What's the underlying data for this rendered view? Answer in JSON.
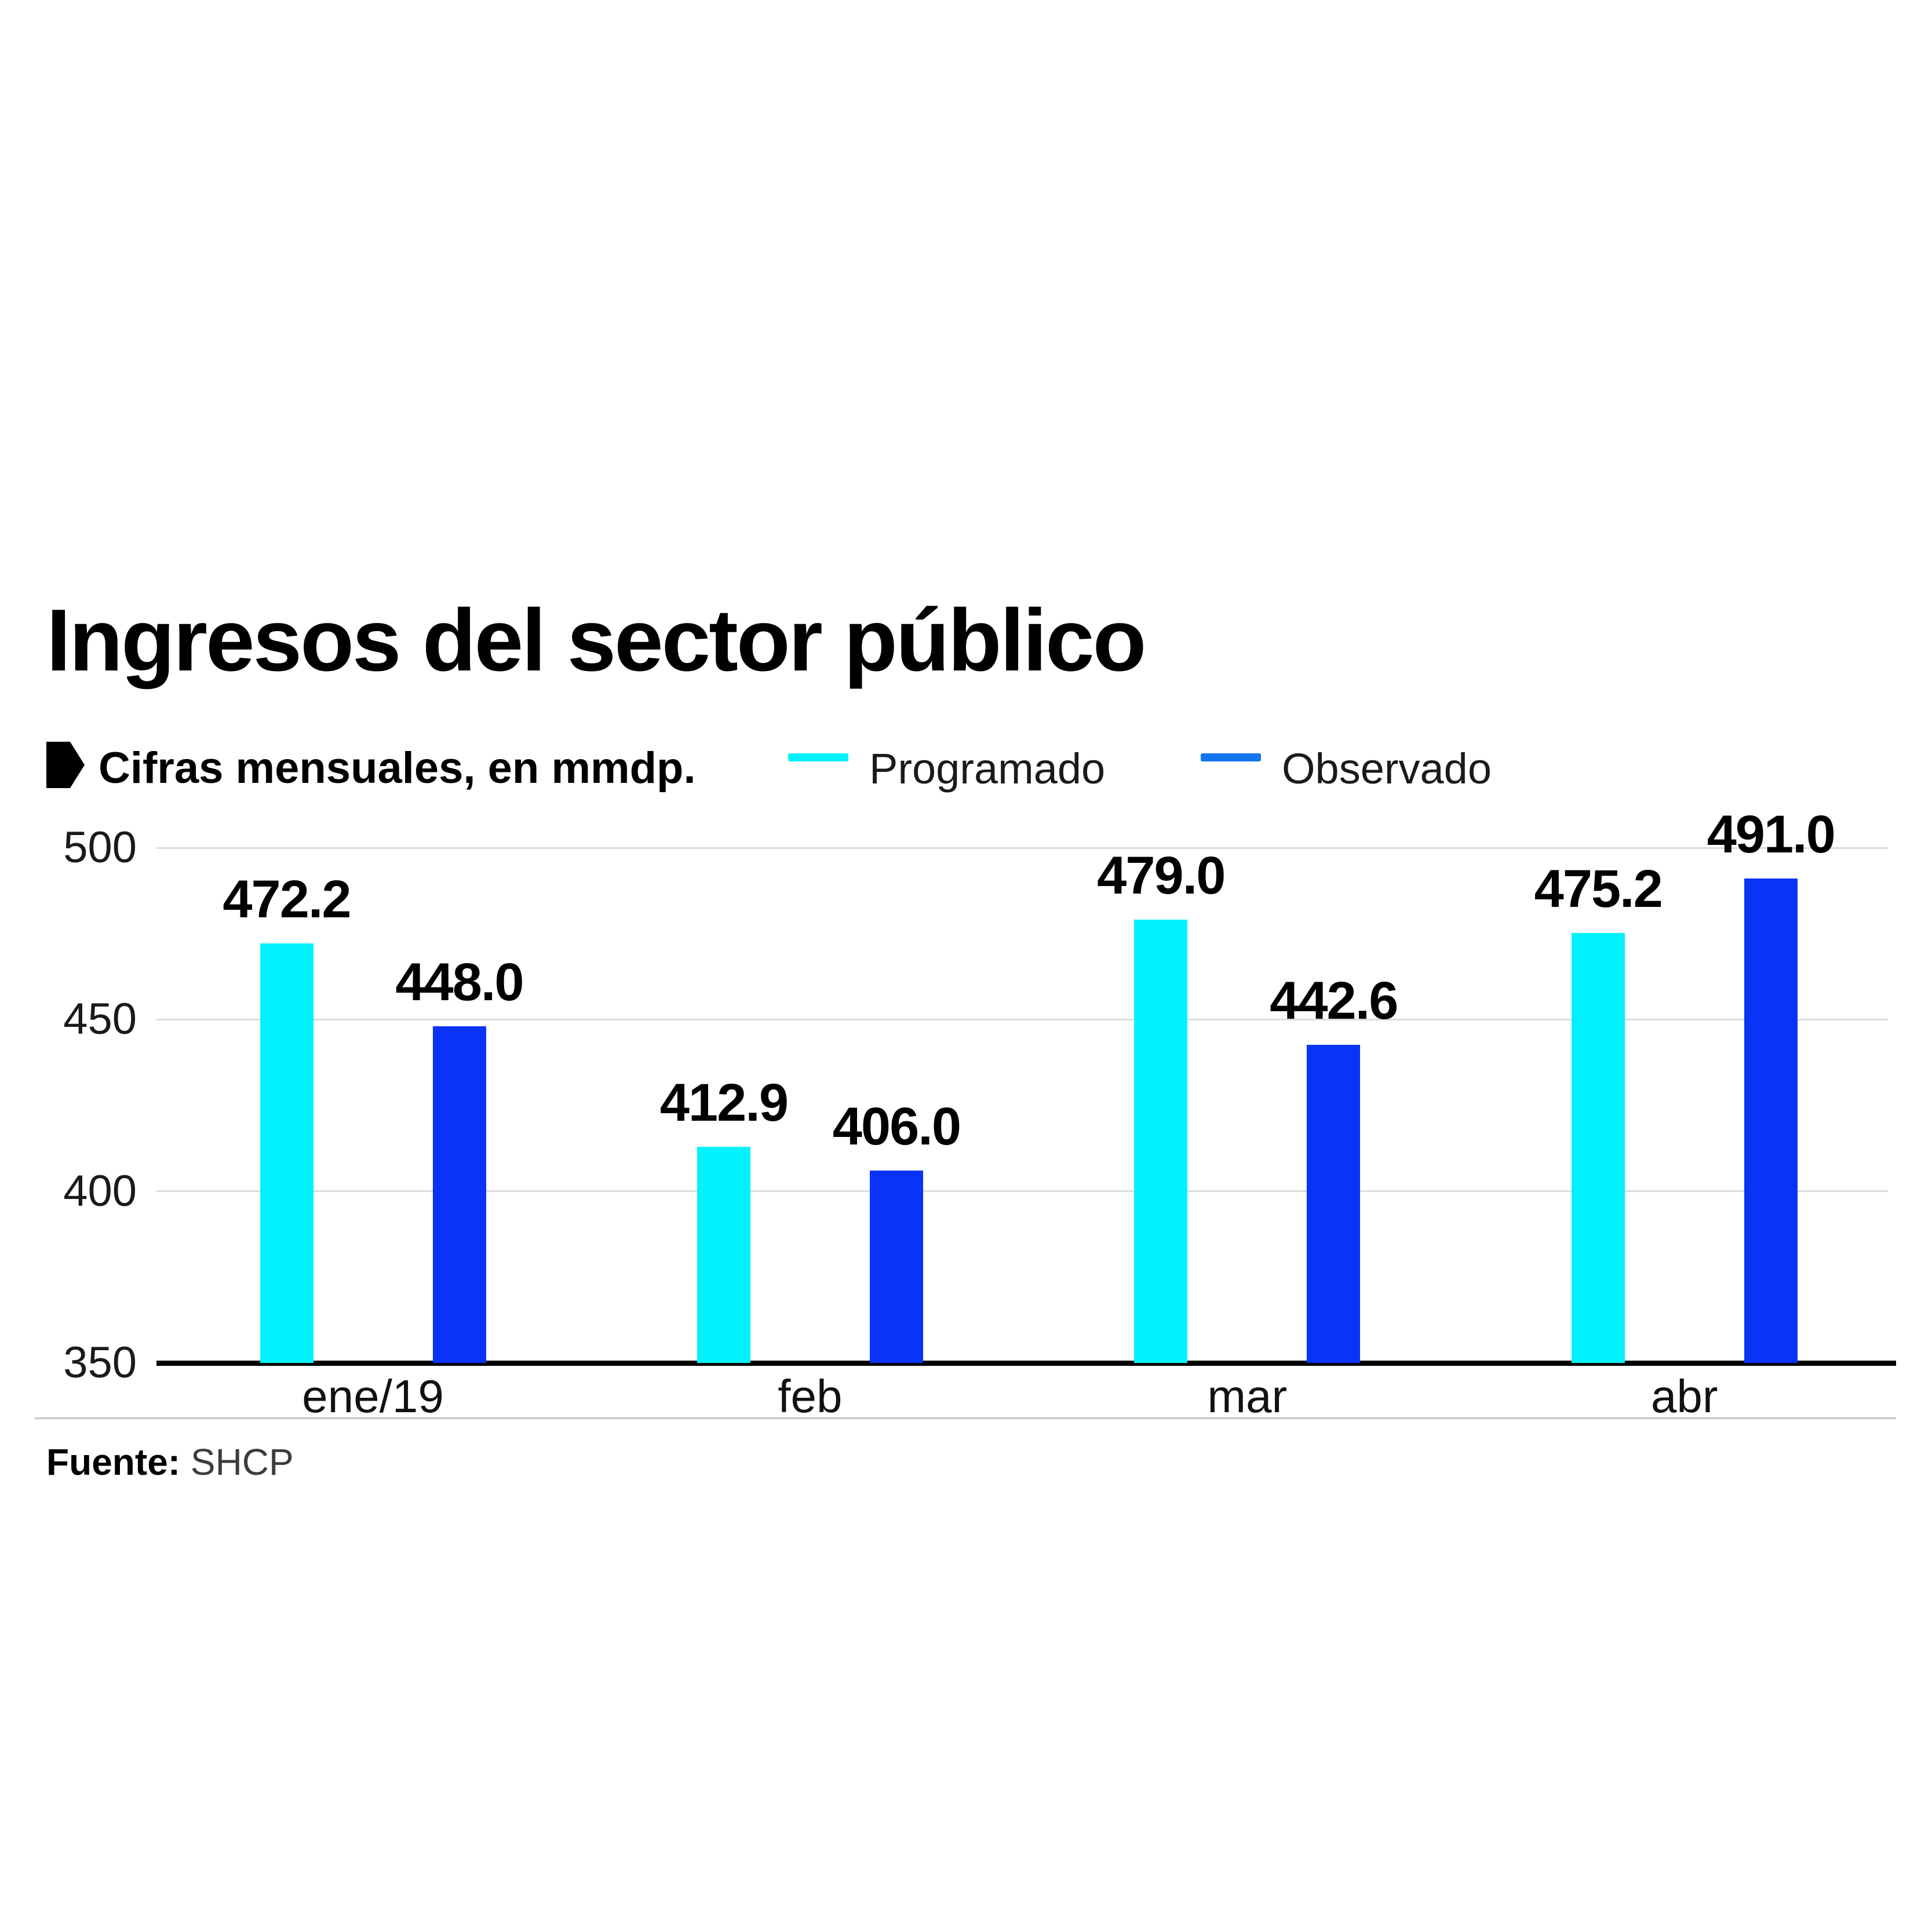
{
  "header": {
    "title": "Ingresos del sector público",
    "subtitle": "Cifras mensuales, en mmdp."
  },
  "legend": [
    {
      "label": "Programado",
      "color": "#00F2FC"
    },
    {
      "label": "Observado",
      "color": "#1474F2"
    }
  ],
  "footer": {
    "source_label": "Fuente:",
    "source_value": "SHCP"
  },
  "colors": {
    "programado_bar": "#00F2FC",
    "observado_bar": "#0A33F7",
    "gridline": "#DCDCDC",
    "axis_line": "#000000",
    "separator": "#C9C9C9",
    "text": "#000000"
  },
  "chart_data": {
    "type": "bar",
    "categories": [
      "ene/19",
      "feb",
      "mar",
      "abr"
    ],
    "series": [
      {
        "name": "Programado",
        "color": "#00F2FC",
        "values": [
          472.2,
          412.9,
          479.0,
          475.2
        ]
      },
      {
        "name": "Observado",
        "color": "#0A33F7",
        "values": [
          448.0,
          406.0,
          442.6,
          491.0
        ]
      }
    ],
    "title": "Ingresos del sector público",
    "subtitle": "Cifras mensuales, en mmdp.",
    "xlabel": "",
    "ylabel": "",
    "ylim": [
      350,
      500
    ],
    "yticks": [
      350,
      400,
      450,
      500
    ],
    "grid": true,
    "legend_position": "top",
    "value_labels": true,
    "value_label_format": "one-decimal",
    "source": "Fuente: SHCP"
  }
}
